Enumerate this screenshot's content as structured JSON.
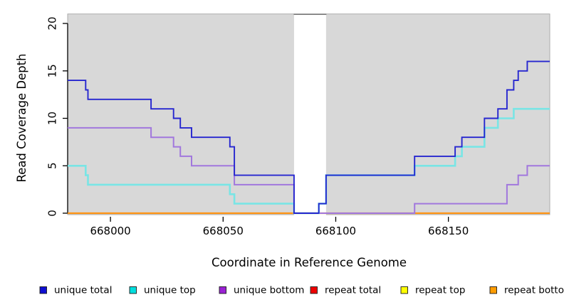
{
  "chart_data": {
    "type": "line",
    "style": "step-after",
    "title": "",
    "xlabel": "Coordinate in Reference Genome",
    "ylabel": "Read Coverage Depth",
    "xlim": [
      667981,
      668195
    ],
    "ylim": [
      0,
      21.1
    ],
    "grid": false,
    "x_ticks": [
      668000,
      668050,
      668100,
      668150
    ],
    "y_ticks": [
      0,
      5,
      10,
      15,
      20
    ],
    "shaded_region": {
      "x": [
        667981,
        668195
      ],
      "y": [
        0,
        21
      ],
      "fill": "#d8d8d8",
      "border": "#adadad",
      "gap": {
        "x": [
          668081.5,
          668095.7
        ],
        "fill": "#ffffff",
        "top_border": "#6f6f6f"
      }
    },
    "draw_order": [
      "repeat total",
      "repeat top",
      "repeat bottom",
      "unique bottom",
      "unique top",
      "unique total"
    ],
    "series": [
      {
        "name": "unique total",
        "color": "#2626cf",
        "legend_color": "#0f0fd2",
        "width": 1.9,
        "steps": [
          [
            667981,
            14
          ],
          [
            667989,
            13
          ],
          [
            667990,
            12
          ],
          [
            668018,
            11
          ],
          [
            668028,
            10
          ],
          [
            668031,
            9
          ],
          [
            668036,
            8
          ],
          [
            668053,
            7
          ],
          [
            668055,
            4
          ],
          [
            668081.5,
            0
          ],
          [
            668092.5,
            1
          ],
          [
            668095.7,
            4
          ],
          [
            668135,
            6
          ],
          [
            668153,
            7
          ],
          [
            668156,
            8
          ],
          [
            668166,
            10
          ],
          [
            668172,
            11
          ],
          [
            668176,
            13
          ],
          [
            668179,
            14
          ],
          [
            668181,
            15
          ],
          [
            668185,
            16
          ],
          [
            668195,
            16
          ]
        ]
      },
      {
        "name": "unique top",
        "color": "#79e5e5",
        "legend_color": "#00dede",
        "width": 2.6,
        "steps": [
          [
            667981,
            5
          ],
          [
            667989,
            4
          ],
          [
            667990,
            3
          ],
          [
            668053,
            2
          ],
          [
            668055,
            1
          ],
          [
            668081.5,
            0
          ],
          [
            668092.5,
            1
          ],
          [
            668095.7,
            4
          ],
          [
            668135,
            5
          ],
          [
            668153,
            6
          ],
          [
            668156,
            7
          ],
          [
            668166,
            9
          ],
          [
            668172,
            10
          ],
          [
            668179,
            11
          ],
          [
            668195,
            11
          ]
        ]
      },
      {
        "name": "unique bottom",
        "color": "#a177dd",
        "legend_color": "#9a22d4",
        "width": 2.0,
        "steps": [
          [
            667981,
            9
          ],
          [
            668018,
            8
          ],
          [
            668028,
            7
          ],
          [
            668031,
            6
          ],
          [
            668036,
            5
          ],
          [
            668055,
            3
          ],
          [
            668081.5,
            0
          ],
          [
            668135,
            1
          ],
          [
            668176,
            3
          ],
          [
            668181,
            4
          ],
          [
            668185,
            5
          ],
          [
            668195,
            5
          ]
        ]
      },
      {
        "name": "repeat total",
        "color": "#dd1111",
        "legend_color": "#ee0000",
        "width": 2.0,
        "steps": [
          [
            667981,
            0
          ],
          [
            668195,
            0
          ]
        ]
      },
      {
        "name": "repeat top",
        "color": "#f8f800",
        "legend_color": "#ffff00",
        "width": 2.0,
        "steps": [
          [
            667981,
            0
          ],
          [
            668195,
            0
          ]
        ]
      },
      {
        "name": "repeat bottom",
        "color": "#ff9414",
        "legend_color": "#ff9c00",
        "width": 2.2,
        "steps": [
          [
            667981,
            0
          ],
          [
            668195,
            0
          ]
        ]
      }
    ],
    "legend": {
      "position": "bottom",
      "items": [
        {
          "label": "unique total",
          "color": "#0f0fd2"
        },
        {
          "label": "unique top",
          "color": "#00dede"
        },
        {
          "label": "unique bottom",
          "color": "#9a22d4"
        },
        {
          "label": "repeat total",
          "color": "#ee0000"
        },
        {
          "label": "repeat top",
          "color": "#ffff00"
        },
        {
          "label": "repeat bottom",
          "color": "#ff9c00"
        }
      ]
    }
  }
}
